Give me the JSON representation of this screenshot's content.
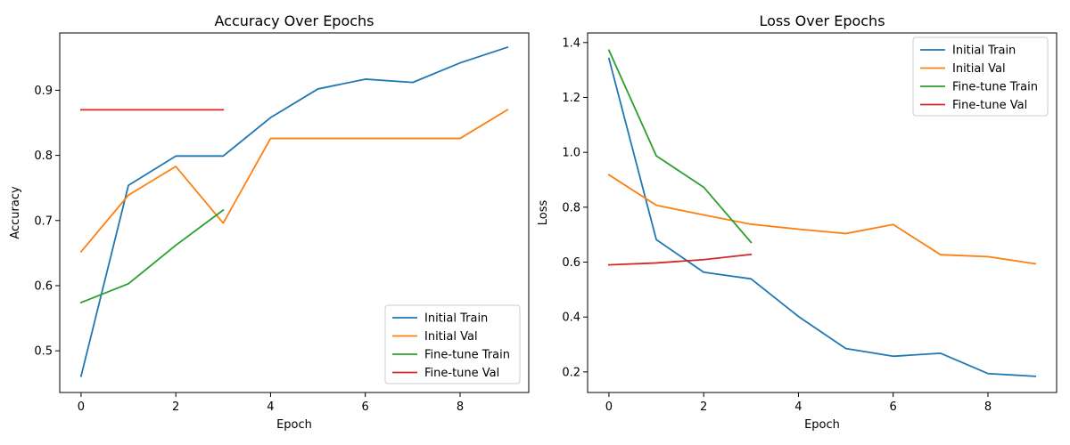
{
  "chart_data": [
    {
      "type": "line",
      "title": "Accuracy Over Epochs",
      "xlabel": "Epoch",
      "ylabel": "Accuracy",
      "xlim": [
        -0.45,
        9.45
      ],
      "ylim": [
        0.436,
        0.988
      ],
      "xticks": [
        0,
        2,
        4,
        6,
        8
      ],
      "yticks": [
        0.5,
        0.6,
        0.7,
        0.8,
        0.9
      ],
      "legend": "lower-right",
      "series": [
        {
          "name": "Initial Train",
          "color": "#1f77b4",
          "x": [
            0,
            1,
            2,
            3,
            4,
            5,
            6,
            7,
            8,
            9
          ],
          "y": [
            0.461,
            0.754,
            0.799,
            0.799,
            0.858,
            0.902,
            0.917,
            0.912,
            0.942,
            0.966
          ]
        },
        {
          "name": "Initial Val",
          "color": "#ff7f0e",
          "x": [
            0,
            1,
            2,
            3,
            4,
            5,
            6,
            7,
            8,
            9
          ],
          "y": [
            0.652,
            0.739,
            0.783,
            0.696,
            0.826,
            0.826,
            0.826,
            0.826,
            0.826,
            0.87
          ]
        },
        {
          "name": "Fine-tune Train",
          "color": "#2ca02c",
          "x": [
            0,
            1,
            2,
            3
          ],
          "y": [
            0.574,
            0.603,
            0.662,
            0.716
          ]
        },
        {
          "name": "Fine-tune Val",
          "color": "#d62728",
          "x": [
            0,
            1,
            2,
            3
          ],
          "y": [
            0.87,
            0.87,
            0.87,
            0.87
          ]
        }
      ]
    },
    {
      "type": "line",
      "title": "Loss Over Epochs",
      "xlabel": "Epoch",
      "ylabel": "Loss",
      "xlim": [
        -0.45,
        9.45
      ],
      "ylim": [
        0.125,
        1.435
      ],
      "xticks": [
        0,
        2,
        4,
        6,
        8
      ],
      "yticks": [
        0.2,
        0.4,
        0.6,
        0.8,
        1.0,
        1.2,
        1.4
      ],
      "legend": "upper-right",
      "series": [
        {
          "name": "Initial Train",
          "color": "#1f77b4",
          "x": [
            0,
            1,
            2,
            3,
            4,
            5,
            6,
            7,
            8,
            9
          ],
          "y": [
            1.342,
            0.682,
            0.563,
            0.539,
            0.402,
            0.285,
            0.257,
            0.268,
            0.194,
            0.184
          ]
        },
        {
          "name": "Initial Val",
          "color": "#ff7f0e",
          "x": [
            0,
            1,
            2,
            3,
            4,
            5,
            6,
            7,
            8,
            9
          ],
          "y": [
            0.918,
            0.807,
            0.772,
            0.738,
            0.72,
            0.704,
            0.737,
            0.627,
            0.62,
            0.594
          ]
        },
        {
          "name": "Fine-tune Train",
          "color": "#2ca02c",
          "x": [
            0,
            1,
            2,
            3
          ],
          "y": [
            1.372,
            0.987,
            0.873,
            0.672
          ]
        },
        {
          "name": "Fine-tune Val",
          "color": "#d62728",
          "x": [
            0,
            1,
            2,
            3
          ],
          "y": [
            0.59,
            0.597,
            0.609,
            0.628
          ]
        }
      ]
    }
  ]
}
